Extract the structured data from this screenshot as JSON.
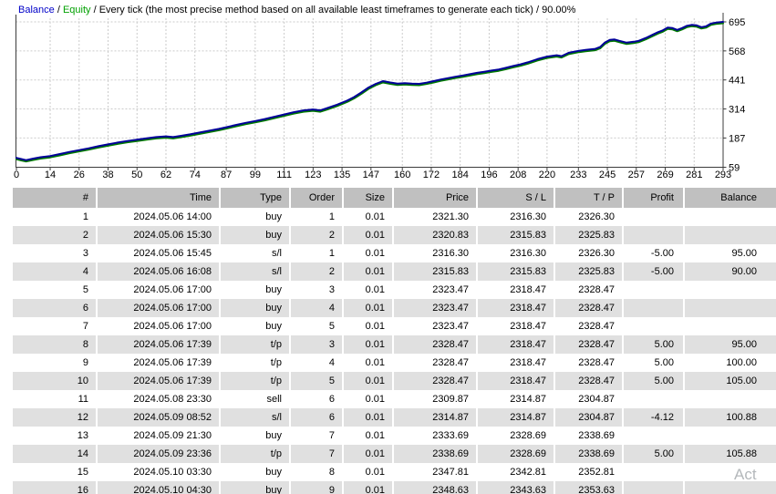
{
  "chart": {
    "caption": {
      "balance": "Balance",
      "equity": "Equity",
      "separator": " / ",
      "method": "Every tick (the most precise method based on all available least timeframes to generate each tick) / 90.00%"
    },
    "colors": {
      "balance_line": "#000099",
      "equity_line": "#007a00",
      "grid": "#cbcbcb",
      "frame": "#3c3c3c",
      "balance_label": "#0000c8",
      "equity_label": "#00a000"
    }
  },
  "chart_data": {
    "type": "line",
    "title": "",
    "xlabel": "",
    "ylabel": "",
    "grid": true,
    "xlim": [
      0,
      293
    ],
    "ylim": [
      59,
      695
    ],
    "x_ticks": [
      0,
      14,
      26,
      38,
      50,
      62,
      74,
      87,
      99,
      111,
      123,
      135,
      147,
      160,
      172,
      184,
      196,
      208,
      220,
      233,
      245,
      257,
      269,
      281,
      293
    ],
    "y_ticks": [
      695,
      568,
      441,
      314,
      187,
      59
    ],
    "series": [
      {
        "name": "Balance",
        "color": "#000099",
        "points": [
          [
            0,
            100
          ],
          [
            2,
            95
          ],
          [
            4,
            90
          ],
          [
            7,
            97
          ],
          [
            10,
            103
          ],
          [
            14,
            108
          ],
          [
            18,
            117
          ],
          [
            22,
            126
          ],
          [
            26,
            134
          ],
          [
            30,
            142
          ],
          [
            34,
            151
          ],
          [
            38,
            159
          ],
          [
            42,
            167
          ],
          [
            46,
            174
          ],
          [
            50,
            180
          ],
          [
            54,
            186
          ],
          [
            58,
            191
          ],
          [
            62,
            194
          ],
          [
            65,
            191
          ],
          [
            68,
            196
          ],
          [
            72,
            203
          ],
          [
            76,
            211
          ],
          [
            80,
            219
          ],
          [
            84,
            227
          ],
          [
            87,
            234
          ],
          [
            91,
            244
          ],
          [
            95,
            253
          ],
          [
            99,
            261
          ],
          [
            103,
            270
          ],
          [
            107,
            280
          ],
          [
            111,
            290
          ],
          [
            115,
            300
          ],
          [
            119,
            308
          ],
          [
            123,
            312
          ],
          [
            126,
            308
          ],
          [
            129,
            318
          ],
          [
            133,
            333
          ],
          [
            137,
            350
          ],
          [
            140,
            366
          ],
          [
            143,
            386
          ],
          [
            146,
            408
          ],
          [
            149,
            424
          ],
          [
            152,
            436
          ],
          [
            155,
            430
          ],
          [
            158,
            425
          ],
          [
            161,
            427
          ],
          [
            164,
            425
          ],
          [
            167,
            424
          ],
          [
            170,
            429
          ],
          [
            173,
            436
          ],
          [
            176,
            443
          ],
          [
            179,
            449
          ],
          [
            182,
            455
          ],
          [
            185,
            460
          ],
          [
            188,
            466
          ],
          [
            191,
            472
          ],
          [
            194,
            477
          ],
          [
            197,
            482
          ],
          [
            200,
            487
          ],
          [
            203,
            494
          ],
          [
            206,
            502
          ],
          [
            209,
            509
          ],
          [
            212,
            518
          ],
          [
            216,
            532
          ],
          [
            220,
            543
          ],
          [
            224,
            549
          ],
          [
            226,
            545
          ],
          [
            229,
            560
          ],
          [
            233,
            568
          ],
          [
            236,
            572
          ],
          [
            240,
            577
          ],
          [
            242,
            585
          ],
          [
            244,
            605
          ],
          [
            246,
            616
          ],
          [
            248,
            618
          ],
          [
            250,
            612
          ],
          [
            253,
            604
          ],
          [
            256,
            608
          ],
          [
            258,
            612
          ],
          [
            261,
            625
          ],
          [
            264,
            640
          ],
          [
            266,
            650
          ],
          [
            268,
            658
          ],
          [
            270,
            670
          ],
          [
            272,
            668
          ],
          [
            274,
            660
          ],
          [
            276,
            668
          ],
          [
            278,
            678
          ],
          [
            280,
            682
          ],
          [
            282,
            680
          ],
          [
            284,
            672
          ],
          [
            286,
            676
          ],
          [
            288,
            688
          ],
          [
            290,
            692
          ],
          [
            292,
            694
          ],
          [
            293,
            695
          ]
        ]
      },
      {
        "name": "Equity",
        "color": "#007a00",
        "follows_balance": true
      }
    ]
  },
  "table": {
    "columns": [
      {
        "key": "num",
        "label": "#"
      },
      {
        "key": "time",
        "label": "Time"
      },
      {
        "key": "type",
        "label": "Type"
      },
      {
        "key": "order",
        "label": "Order"
      },
      {
        "key": "size",
        "label": "Size"
      },
      {
        "key": "price",
        "label": "Price"
      },
      {
        "key": "sl",
        "label": "S / L"
      },
      {
        "key": "tp",
        "label": "T / P"
      },
      {
        "key": "profit",
        "label": "Profit"
      },
      {
        "key": "balance",
        "label": "Balance"
      }
    ],
    "rows": [
      {
        "num": "1",
        "time": "2024.05.06 14:00",
        "type": "buy",
        "order": "1",
        "size": "0.01",
        "price": "2321.30",
        "sl": "2316.30",
        "tp": "2326.30",
        "profit": "",
        "balance": ""
      },
      {
        "num": "2",
        "time": "2024.05.06 15:30",
        "type": "buy",
        "order": "2",
        "size": "0.01",
        "price": "2320.83",
        "sl": "2315.83",
        "tp": "2325.83",
        "profit": "",
        "balance": ""
      },
      {
        "num": "3",
        "time": "2024.05.06 15:45",
        "type": "s/l",
        "order": "1",
        "size": "0.01",
        "price": "2316.30",
        "sl": "2316.30",
        "tp": "2326.30",
        "profit": "-5.00",
        "balance": "95.00"
      },
      {
        "num": "4",
        "time": "2024.05.06 16:08",
        "type": "s/l",
        "order": "2",
        "size": "0.01",
        "price": "2315.83",
        "sl": "2315.83",
        "tp": "2325.83",
        "profit": "-5.00",
        "balance": "90.00"
      },
      {
        "num": "5",
        "time": "2024.05.06 17:00",
        "type": "buy",
        "order": "3",
        "size": "0.01",
        "price": "2323.47",
        "sl": "2318.47",
        "tp": "2328.47",
        "profit": "",
        "balance": ""
      },
      {
        "num": "6",
        "time": "2024.05.06 17:00",
        "type": "buy",
        "order": "4",
        "size": "0.01",
        "price": "2323.47",
        "sl": "2318.47",
        "tp": "2328.47",
        "profit": "",
        "balance": ""
      },
      {
        "num": "7",
        "time": "2024.05.06 17:00",
        "type": "buy",
        "order": "5",
        "size": "0.01",
        "price": "2323.47",
        "sl": "2318.47",
        "tp": "2328.47",
        "profit": "",
        "balance": ""
      },
      {
        "num": "8",
        "time": "2024.05.06 17:39",
        "type": "t/p",
        "order": "3",
        "size": "0.01",
        "price": "2328.47",
        "sl": "2318.47",
        "tp": "2328.47",
        "profit": "5.00",
        "balance": "95.00"
      },
      {
        "num": "9",
        "time": "2024.05.06 17:39",
        "type": "t/p",
        "order": "4",
        "size": "0.01",
        "price": "2328.47",
        "sl": "2318.47",
        "tp": "2328.47",
        "profit": "5.00",
        "balance": "100.00"
      },
      {
        "num": "10",
        "time": "2024.05.06 17:39",
        "type": "t/p",
        "order": "5",
        "size": "0.01",
        "price": "2328.47",
        "sl": "2318.47",
        "tp": "2328.47",
        "profit": "5.00",
        "balance": "105.00"
      },
      {
        "num": "11",
        "time": "2024.05.08 23:30",
        "type": "sell",
        "order": "6",
        "size": "0.01",
        "price": "2309.87",
        "sl": "2314.87",
        "tp": "2304.87",
        "profit": "",
        "balance": ""
      },
      {
        "num": "12",
        "time": "2024.05.09 08:52",
        "type": "s/l",
        "order": "6",
        "size": "0.01",
        "price": "2314.87",
        "sl": "2314.87",
        "tp": "2304.87",
        "profit": "-4.12",
        "balance": "100.88"
      },
      {
        "num": "13",
        "time": "2024.05.09 21:30",
        "type": "buy",
        "order": "7",
        "size": "0.01",
        "price": "2333.69",
        "sl": "2328.69",
        "tp": "2338.69",
        "profit": "",
        "balance": ""
      },
      {
        "num": "14",
        "time": "2024.05.09 23:36",
        "type": "t/p",
        "order": "7",
        "size": "0.01",
        "price": "2338.69",
        "sl": "2328.69",
        "tp": "2338.69",
        "profit": "5.00",
        "balance": "105.88"
      },
      {
        "num": "15",
        "time": "2024.05.10 03:30",
        "type": "buy",
        "order": "8",
        "size": "0.01",
        "price": "2347.81",
        "sl": "2342.81",
        "tp": "2352.81",
        "profit": "",
        "balance": ""
      },
      {
        "num": "16",
        "time": "2024.05.10 04:30",
        "type": "buy",
        "order": "9",
        "size": "0.01",
        "price": "2348.63",
        "sl": "2343.63",
        "tp": "2353.63",
        "profit": "",
        "balance": ""
      }
    ]
  },
  "watermark": {
    "text": "Act"
  }
}
